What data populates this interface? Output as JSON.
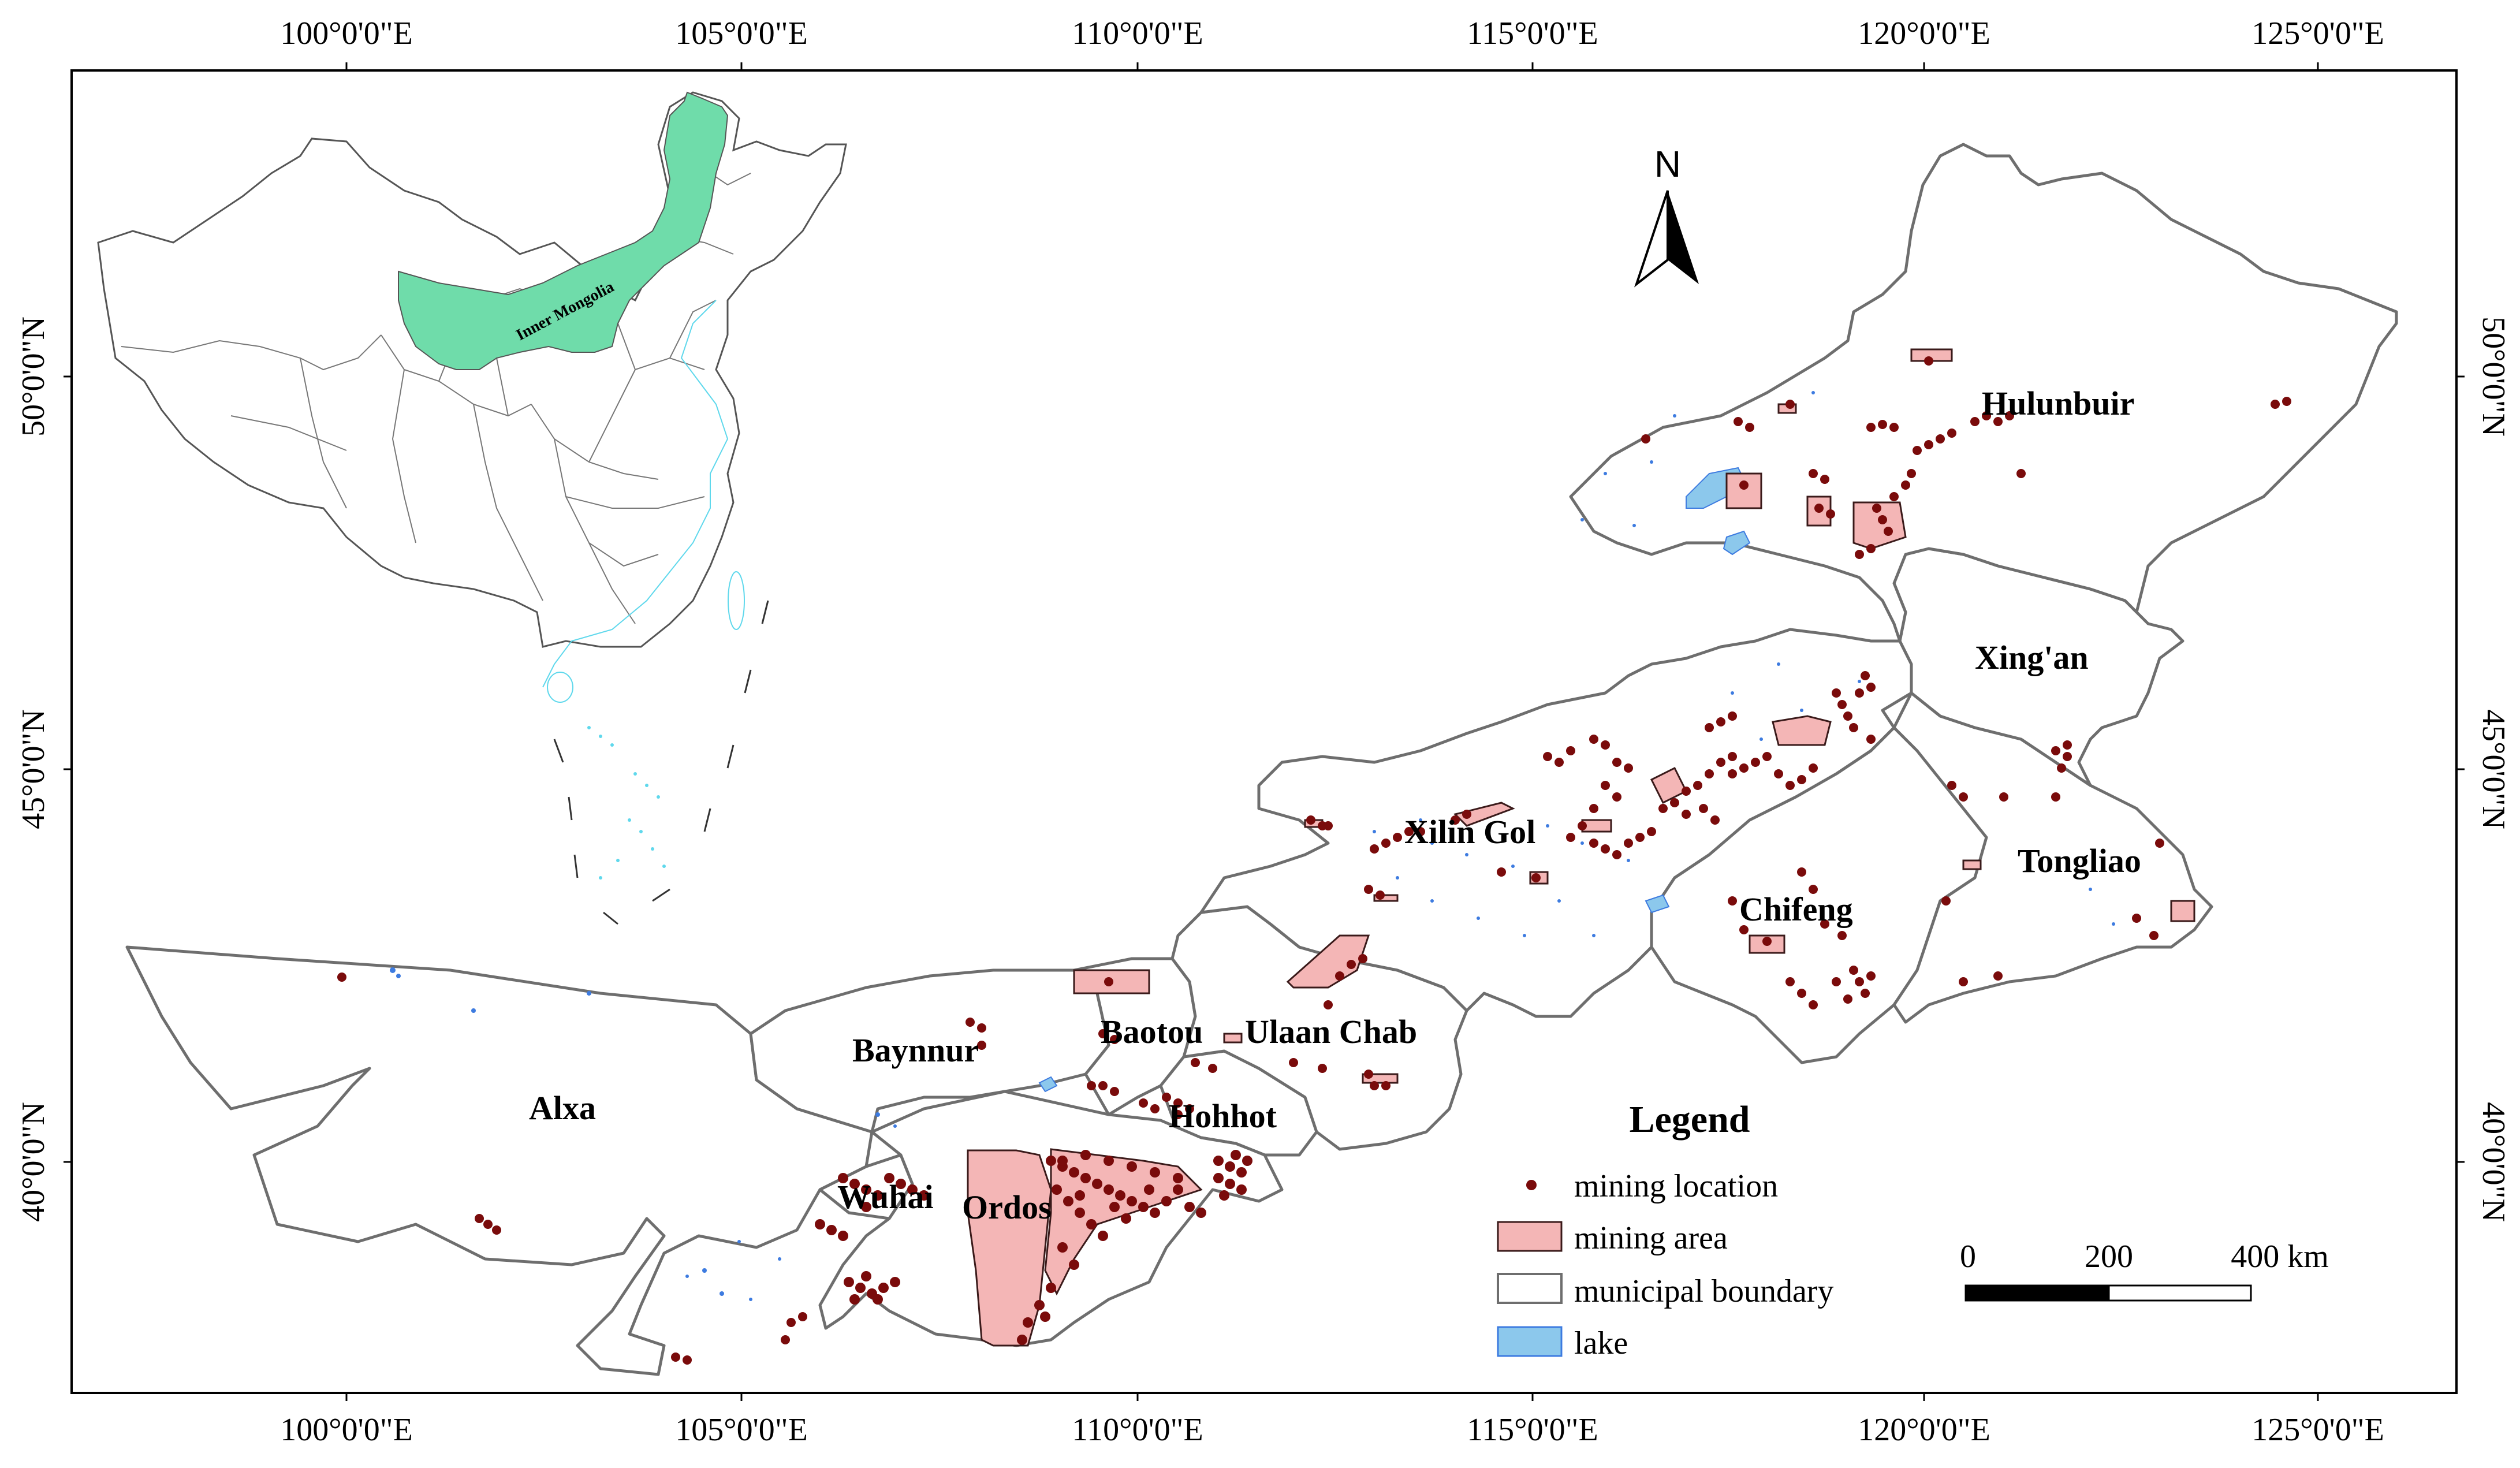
{
  "map": {
    "top_ticks": [
      "100°0'0\"E",
      "105°0'0\"E",
      "110°0'0\"E",
      "115°0'0\"E",
      "120°0'0\"E",
      "125°0'0\"E"
    ],
    "bottom_ticks": [
      "100°0'0\"E",
      "105°0'0\"E",
      "110°0'0\"E",
      "115°0'0\"E",
      "120°0'0\"E",
      "125°0'0\"E"
    ],
    "left_ticks": [
      "50°0'0\"N",
      "45°0'0\"N",
      "40°0'0\"N"
    ],
    "right_ticks": [
      "50°0'0\"N",
      "45°0'0\"N",
      "40°0'0\"N"
    ],
    "inset_label": "Inner Mongolia",
    "north_label": "N"
  },
  "regions": [
    {
      "name": "Hulunbuir"
    },
    {
      "name": "Xing'an"
    },
    {
      "name": "Xilin Gol"
    },
    {
      "name": "Tongliao"
    },
    {
      "name": "Chifeng"
    },
    {
      "name": "Ulaan Chab"
    },
    {
      "name": "Baotou"
    },
    {
      "name": "Baynnur"
    },
    {
      "name": "Hohhot"
    },
    {
      "name": "Alxa"
    },
    {
      "name": "Wuhai"
    },
    {
      "name": "Ordos"
    }
  ],
  "legend": {
    "title": "Legend",
    "items": [
      {
        "label": "mining location",
        "symbol": "point",
        "color": "#7a0b0b"
      },
      {
        "label": "mining area",
        "symbol": "polygon",
        "color": "#f4b6b6"
      },
      {
        "label": "municipal boundary",
        "symbol": "polygon",
        "color": "#ffffff"
      },
      {
        "label": "lake",
        "symbol": "polygon",
        "color": "#8cc8ec"
      }
    ]
  },
  "scale_bar": {
    "labels": [
      "0",
      "200",
      "400 km"
    ]
  },
  "colors": {
    "inner_mongolia_highlight": "#6fdcaa",
    "mining_point": "#7a0b0b",
    "mining_area": "#f4b6b6",
    "lake": "#8cc8ec",
    "boundary": "#6e6e6e"
  }
}
